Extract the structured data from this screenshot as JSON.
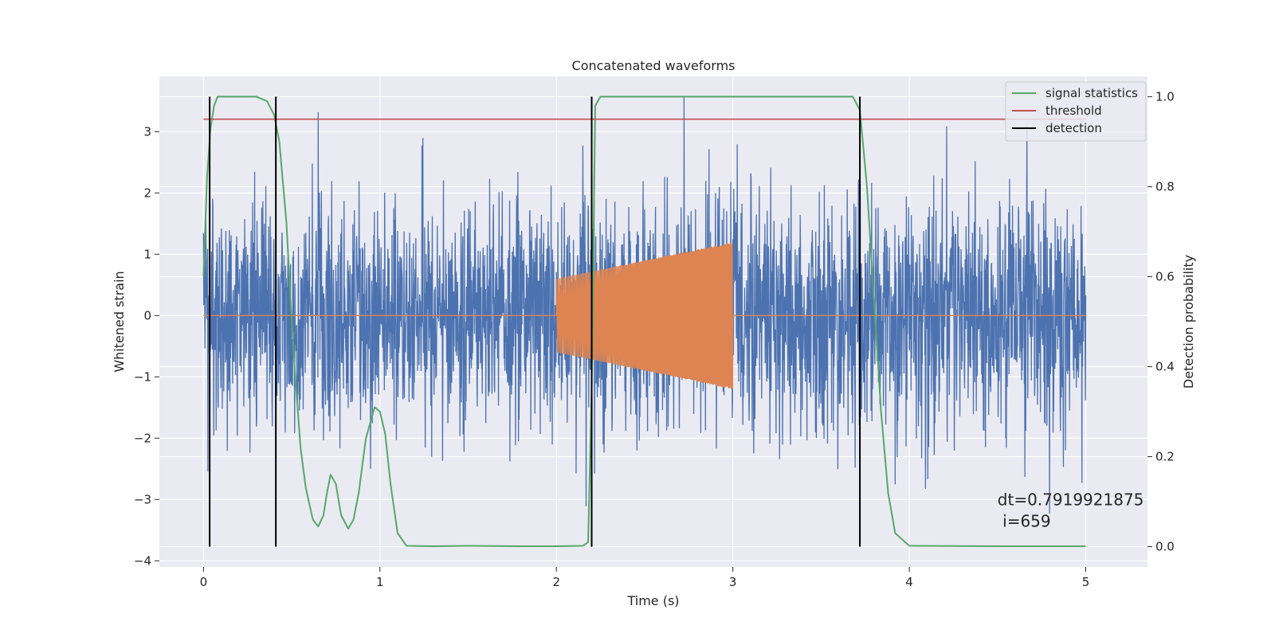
{
  "chart_data": {
    "type": "line",
    "title": "Concatenated waveforms",
    "xlabel": "Time (s)",
    "ylabel": "Whitened strain",
    "ylabel_right": "Detection probability",
    "xlim": [
      -0.25,
      5.35
    ],
    "ylim": [
      -4.1,
      3.9
    ],
    "ylim_right": [
      -0.045,
      1.045
    ],
    "x_ticks": [
      0,
      1,
      2,
      3,
      4,
      5
    ],
    "x_tick_labels": [
      "0",
      "1",
      "2",
      "3",
      "4",
      "5"
    ],
    "y_ticks": [
      -4,
      -3,
      -2,
      -1,
      0,
      1,
      2,
      3
    ],
    "y_tick_labels": [
      "−4",
      "−3",
      "−2",
      "−1",
      "0",
      "1",
      "2",
      "3"
    ],
    "y_right_ticks": [
      0.0,
      0.2,
      0.4,
      0.6,
      0.8,
      1.0
    ],
    "y_right_tick_labels": [
      "0.0",
      "0.2",
      "0.4",
      "0.6",
      "0.8",
      "1.0"
    ],
    "grid": true,
    "legend_position": "top-right",
    "series": [
      {
        "name": "",
        "kind": "noise",
        "axis": "left",
        "color": "#4c72b0",
        "x_range": [
          0,
          5
        ],
        "envelope": [
          -2.5,
          3.6
        ]
      },
      {
        "name": "",
        "kind": "chirp",
        "axis": "left",
        "color": "#dd8452",
        "x_range": [
          0,
          5
        ],
        "chirp_window": [
          2.0,
          3.0
        ],
        "chirp_amplitude": [
          0.6,
          1.2
        ]
      },
      {
        "name": "signal statistics",
        "kind": "line",
        "axis": "right",
        "color": "#55a868",
        "x": [
          0.0,
          0.02,
          0.04,
          0.06,
          0.08,
          0.1,
          0.15,
          0.2,
          0.3,
          0.36,
          0.4,
          0.43,
          0.47,
          0.5,
          0.52,
          0.55,
          0.58,
          0.62,
          0.65,
          0.68,
          0.7,
          0.72,
          0.75,
          0.78,
          0.82,
          0.85,
          0.88,
          0.92,
          0.97,
          1.0,
          1.03,
          1.06,
          1.1,
          1.15,
          1.3,
          1.5,
          1.8,
          2.0,
          2.15,
          2.18,
          2.2,
          2.22,
          2.25,
          2.5,
          3.0,
          3.5,
          3.68,
          3.72,
          3.76,
          3.8,
          3.84,
          3.88,
          3.92,
          4.0,
          4.5,
          5.0
        ],
        "y": [
          0.6,
          0.82,
          0.93,
          0.98,
          1.0,
          1.0,
          1.0,
          1.0,
          1.0,
          0.99,
          0.96,
          0.9,
          0.72,
          0.5,
          0.38,
          0.22,
          0.13,
          0.06,
          0.045,
          0.07,
          0.12,
          0.16,
          0.14,
          0.07,
          0.04,
          0.06,
          0.12,
          0.24,
          0.31,
          0.3,
          0.25,
          0.14,
          0.03,
          0.002,
          0.001,
          0.002,
          0.001,
          0.001,
          0.002,
          0.01,
          0.35,
          0.98,
          1.0,
          1.0,
          1.0,
          1.0,
          1.0,
          0.97,
          0.8,
          0.55,
          0.3,
          0.12,
          0.03,
          0.002,
          0.001,
          0.001
        ]
      },
      {
        "name": "threshold",
        "kind": "hline",
        "axis": "right",
        "color": "#c44e52",
        "y": 0.95,
        "x_range": [
          0,
          5
        ]
      },
      {
        "name": "detection",
        "kind": "vlines",
        "axis": "right",
        "color": "#000000",
        "x": [
          0.035,
          0.41,
          2.2,
          3.72
        ],
        "y_range": [
          0,
          1
        ]
      }
    ],
    "annotation": {
      "line1": "dt=0.7919921875",
      "line2": " i=659",
      "x": 4.5,
      "y": -3.0
    }
  }
}
